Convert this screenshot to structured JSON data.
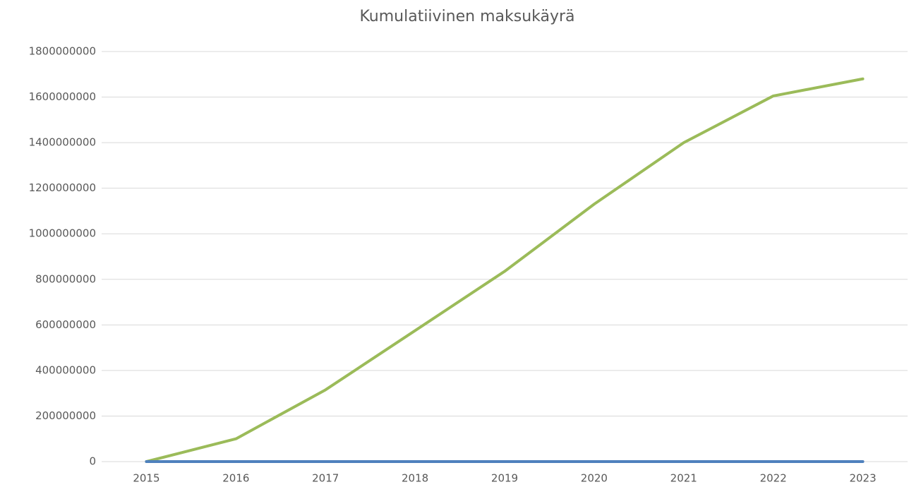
{
  "chart_data": {
    "type": "line",
    "title": "Kumulatiivinen maksukäyrä",
    "categories": [
      "2015",
      "2016",
      "2017",
      "2018",
      "2019",
      "2020",
      "2021",
      "2022",
      "2023"
    ],
    "series": [
      {
        "color": "#9bbb59",
        "values": [
          0,
          100000000,
          315000000,
          575000000,
          835000000,
          1130000000,
          1400000000,
          1605000000,
          1680000000
        ]
      },
      {
        "color": "#4f81bd",
        "values": [
          0,
          0,
          0,
          0,
          0,
          0,
          0,
          0,
          0
        ]
      }
    ],
    "ylim": [
      0,
      1800000000
    ],
    "yticks": [
      0,
      200000000,
      400000000,
      600000000,
      800000000,
      1000000000,
      1200000000,
      1400000000,
      1600000000,
      1800000000
    ],
    "grid": true
  }
}
